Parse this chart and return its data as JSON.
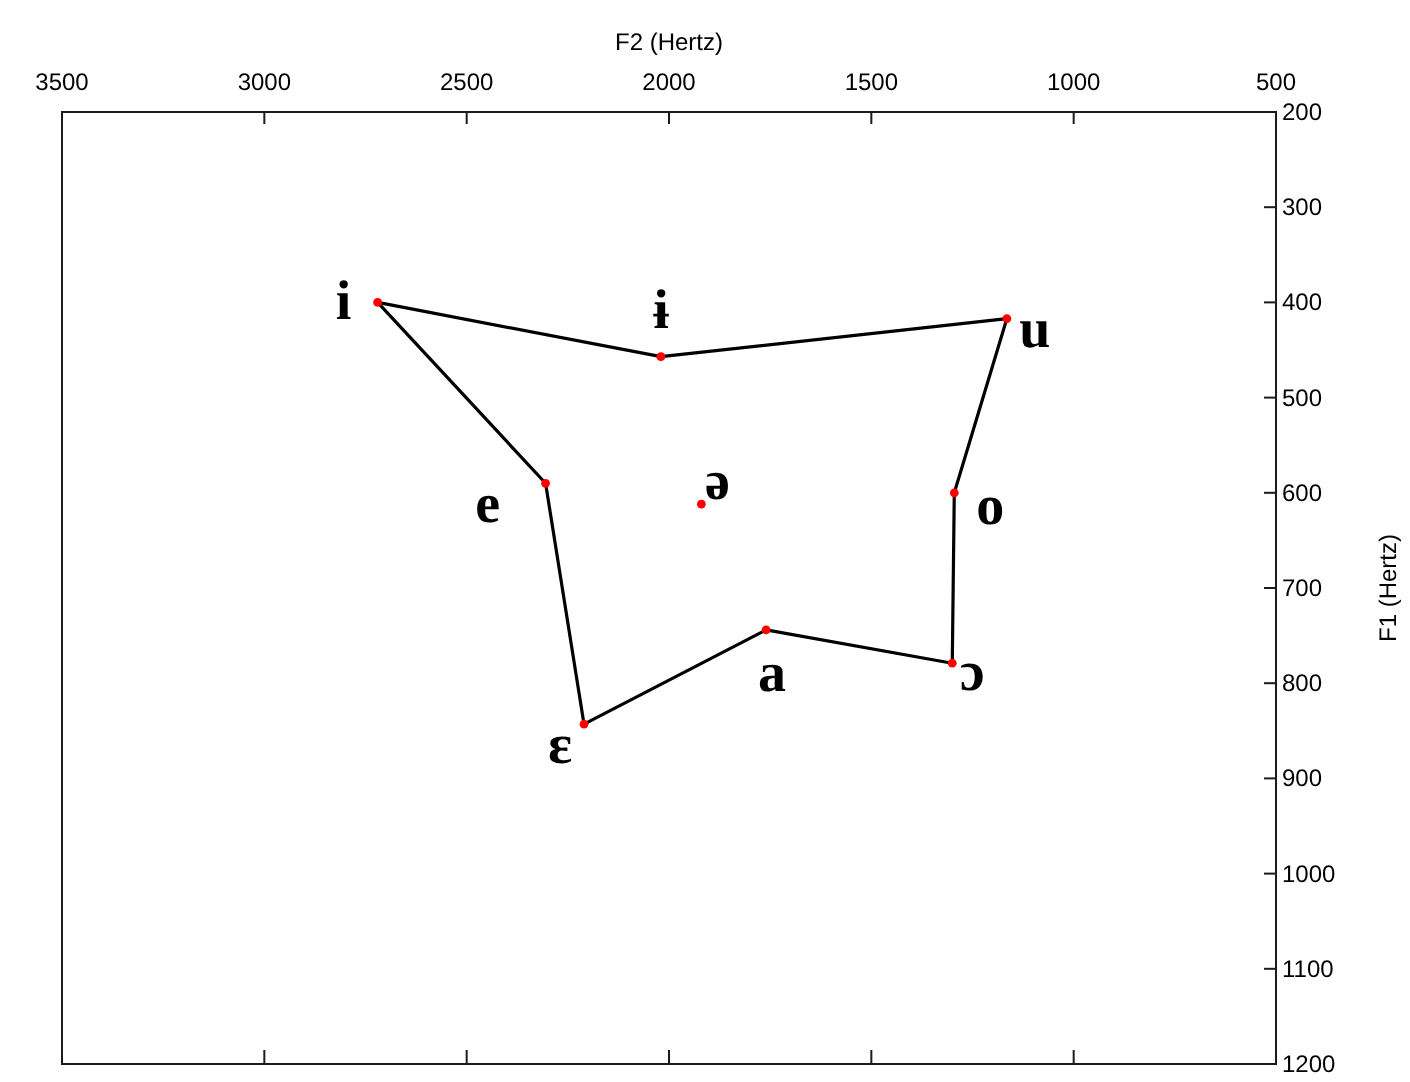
{
  "chart_data": {
    "type": "scatter",
    "xlabel": "F2 (Hertz)",
    "ylabel": "F1 (Hertz)",
    "xlim": [
      3500,
      500
    ],
    "xticks": [
      3500,
      3000,
      2500,
      2000,
      1500,
      1000,
      500
    ],
    "ylim": [
      1200,
      200
    ],
    "yticks": [
      200,
      300,
      400,
      500,
      600,
      700,
      800,
      900,
      1000,
      1100,
      1200
    ],
    "series": [
      {
        "type": "line",
        "color": "#000000",
        "x": [
          2720,
          2020,
          1165
        ],
        "values": [
          400,
          457,
          417
        ]
      },
      {
        "type": "line",
        "color": "#000000",
        "x": [
          1165,
          1295,
          1300,
          1760,
          2210,
          2305,
          2720
        ],
        "values": [
          417,
          600,
          779,
          744,
          843,
          590,
          400
        ]
      },
      {
        "type": "scatter",
        "color": "#ff0000",
        "marker": "circle",
        "x": [
          2720,
          2020,
          1165,
          2305,
          1920,
          1295,
          2210,
          1760,
          1300
        ],
        "values": [
          400,
          457,
          417,
          590,
          612,
          600,
          843,
          744,
          779
        ]
      }
    ],
    "annotations": [
      {
        "text": "i",
        "x": 2720,
        "y": 400
      },
      {
        "text": "ɨ",
        "x": 2020,
        "y": 457
      },
      {
        "text": "u",
        "x": 1165,
        "y": 417
      },
      {
        "text": "e",
        "x": 2305,
        "y": 590
      },
      {
        "text": "ə",
        "x": 1920,
        "y": 612
      },
      {
        "text": "o",
        "x": 1295,
        "y": 600
      },
      {
        "text": "ɛ",
        "x": 2210,
        "y": 843
      },
      {
        "text": "a",
        "x": 1760,
        "y": 744
      },
      {
        "text": "ɔ",
        "x": 1300,
        "y": 779
      }
    ]
  }
}
